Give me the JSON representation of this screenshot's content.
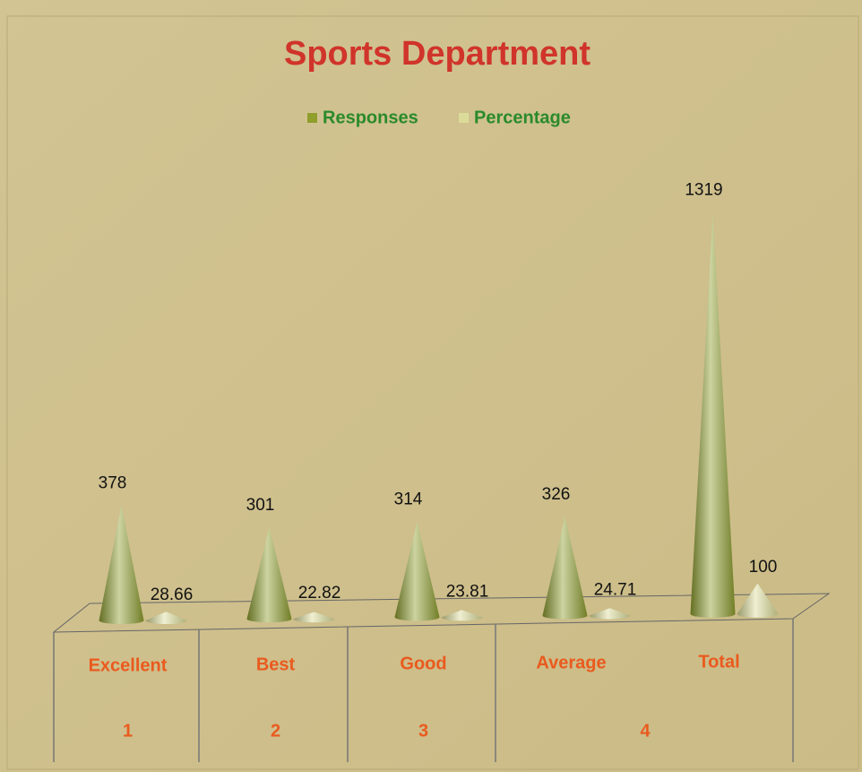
{
  "chart_data": {
    "type": "cone",
    "title": "Sports Department",
    "categories": [
      "Excellent",
      "Best",
      "Good",
      "Average",
      "Total"
    ],
    "category_groups": [
      "1",
      "2",
      "3",
      "4"
    ],
    "series": [
      {
        "name": "Responses",
        "color": "#8f9e2c",
        "values": [
          378,
          301,
          314,
          326,
          1319
        ]
      },
      {
        "name": "Percentage",
        "color": "#dcdc9a",
        "values": [
          28.66,
          22.82,
          23.81,
          24.71,
          100
        ]
      }
    ],
    "legend": "top"
  }
}
